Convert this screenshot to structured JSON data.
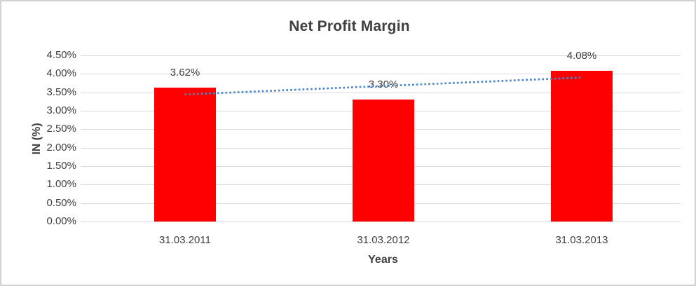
{
  "chart_data": {
    "type": "bar",
    "title": "Net Profit Margin",
    "xlabel": "Years",
    "ylabel": "IN (%)",
    "categories": [
      "31.03.2011",
      "31.03.2012",
      "31.03.2013"
    ],
    "values": [
      3.62,
      3.3,
      4.08
    ],
    "data_labels": [
      "3.62%",
      "3.30%",
      "4.08%"
    ],
    "ylim": [
      0,
      4.5
    ],
    "ytick_step": 0.5,
    "ytick_labels": [
      "0.00%",
      "0.50%",
      "1.00%",
      "1.50%",
      "2.00%",
      "2.50%",
      "3.00%",
      "3.50%",
      "4.00%",
      "4.50%"
    ],
    "grid": true,
    "legend": false,
    "bar_color": "#ff0000",
    "gridline_color": "#d9d9d9",
    "text_color": "#404040",
    "trendline": {
      "type": "linear",
      "style": "dotted",
      "color": "#4a86c8",
      "start_value": 3.44,
      "end_value": 3.9
    }
  }
}
